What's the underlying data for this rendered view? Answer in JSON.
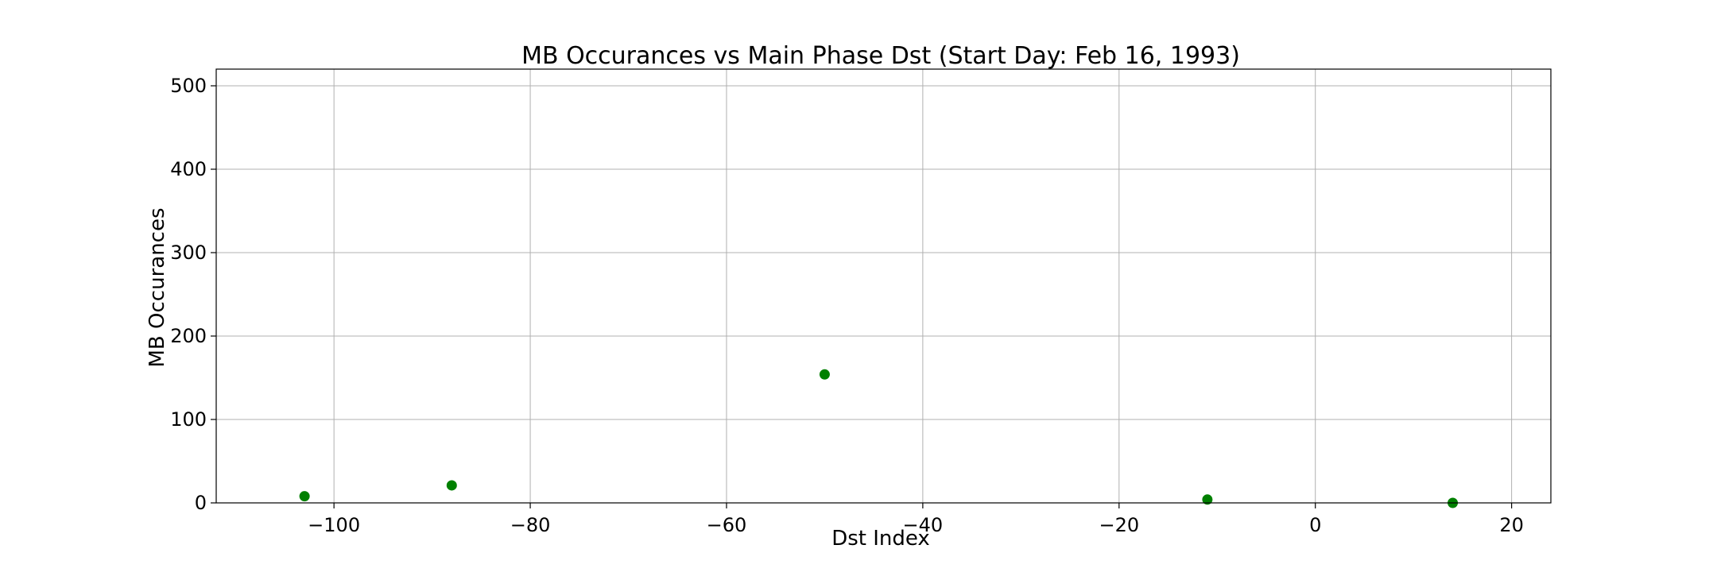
{
  "chart_data": {
    "type": "scatter",
    "title": "MB Occurances vs Main Phase Dst (Start Day: Feb 16, 1993)",
    "xlabel": "Dst Index",
    "ylabel": "MB Occurances",
    "xlim": [
      -112,
      24
    ],
    "ylim": [
      0,
      520
    ],
    "xticks": [
      -100,
      -80,
      -60,
      -40,
      -20,
      0,
      20
    ],
    "xtick_labels": [
      "−100",
      "−80",
      "−60",
      "−40",
      "−20",
      "0",
      "20"
    ],
    "yticks": [
      0,
      100,
      200,
      300,
      400,
      500
    ],
    "ytick_labels": [
      "0",
      "100",
      "200",
      "300",
      "400",
      "500"
    ],
    "grid": true,
    "series": [
      {
        "color": "#008000",
        "points": [
          {
            "x": -103,
            "y": 8
          },
          {
            "x": -88,
            "y": 21
          },
          {
            "x": -50,
            "y": 154
          },
          {
            "x": -11,
            "y": 4
          },
          {
            "x": 14,
            "y": 0
          }
        ]
      }
    ]
  }
}
